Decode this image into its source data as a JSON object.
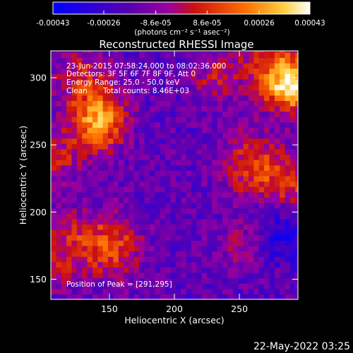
{
  "chart_data": {
    "type": "heatmap",
    "title": "Reconstructed RHESSI Image",
    "xlabel": "Heliocentric X (arcsec)",
    "ylabel": "Heliocentric Y (arcsec)",
    "xlim": [
      105,
      295
    ],
    "ylim": [
      135,
      320
    ],
    "xticks": [
      150,
      200,
      250
    ],
    "yticks": [
      150,
      200,
      250,
      300
    ],
    "colorbar": {
      "min": -0.00043,
      "max": 0.00043,
      "tick_labels": [
        "-0.00043",
        "-0.00026",
        "-8.6e-05",
        "8.6e-05",
        "0.00026",
        "0.00043"
      ],
      "unit_label": "(photons cm⁻² s⁻¹ asec⁻²)",
      "colors": [
        "#0000ff",
        "#7700aa",
        "#aa0000",
        "#ff8800",
        "#ffffff"
      ]
    },
    "annotations": {
      "time_range": "23-Jun-2015 07:58:24.000 to 08:02:36.000",
      "detectors": "Detectors: 3F 5F 6F 7F 8F 9F, Att 0",
      "energy_range": "Energy Range: 25.0 - 50.0 keV",
      "algorithm": "Clean",
      "total_counts": "Total counts: 8.46E+03",
      "peak_position": "Position of Peak = [291,295]"
    },
    "peak": [
      291,
      295
    ],
    "footer_date": "22-May-2022 03:25"
  }
}
